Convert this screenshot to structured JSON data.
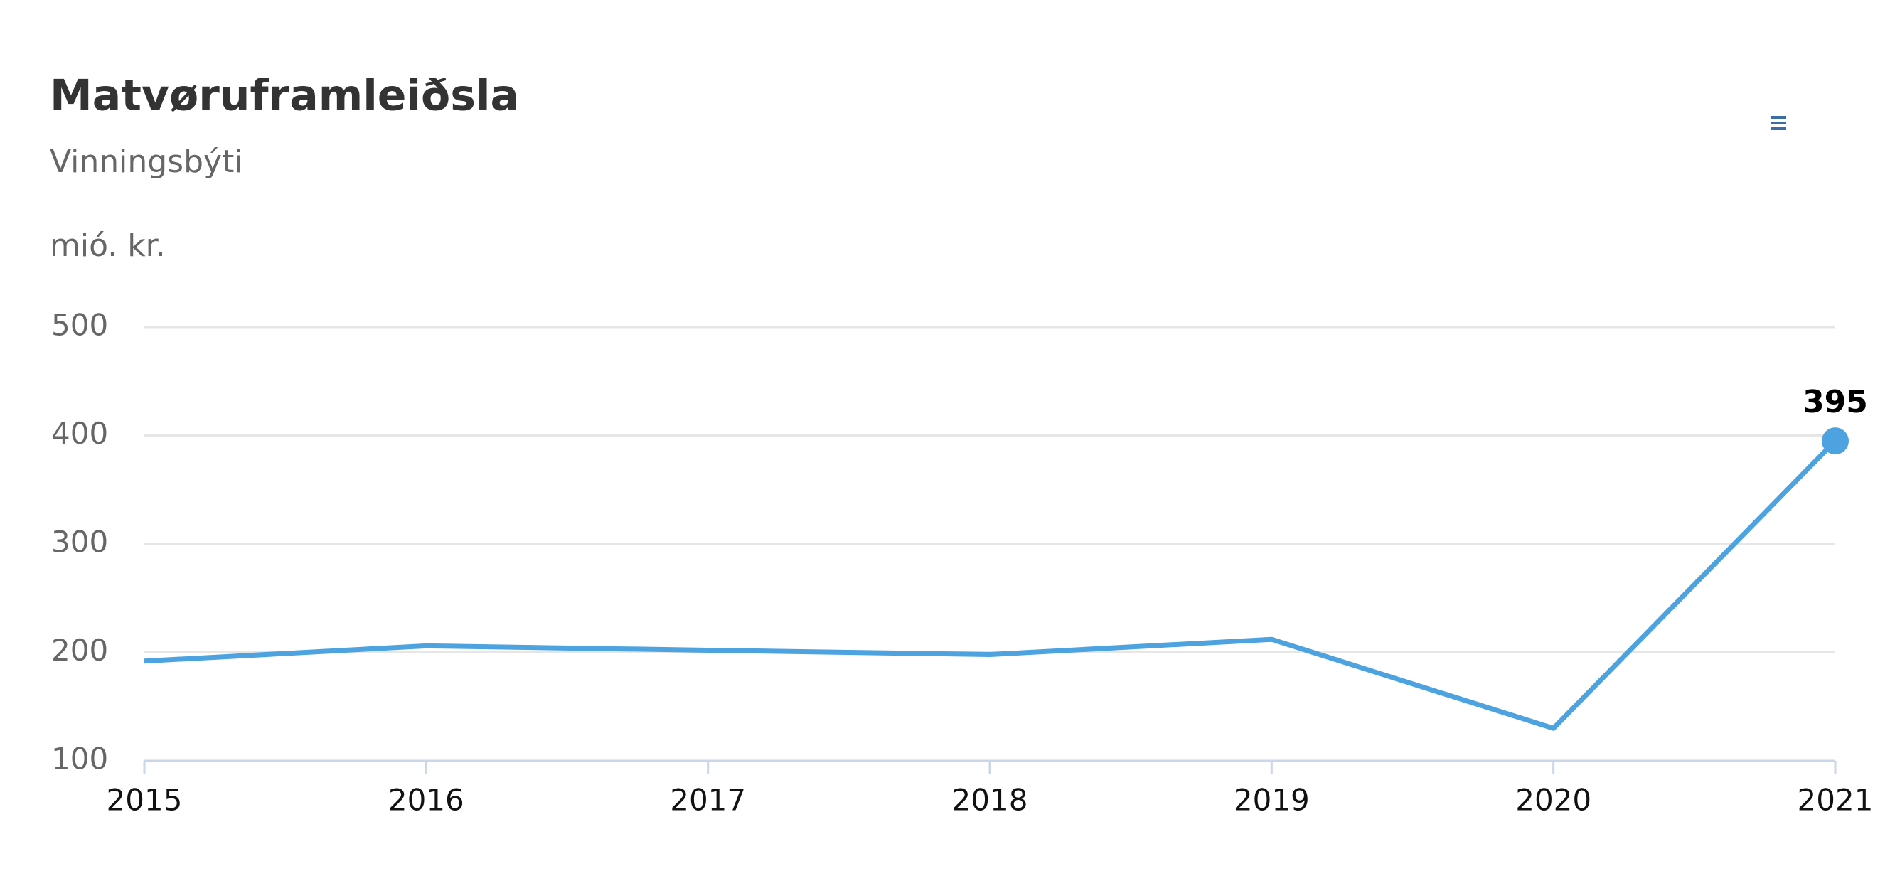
{
  "chart_data": {
    "type": "line",
    "title": "Matvøruframleiðsla",
    "subtitle": "Vinningsbýti",
    "y_label": "mió. kr.",
    "categories": [
      "2015",
      "2016",
      "2017",
      "2018",
      "2019",
      "2020",
      "2021"
    ],
    "series": [
      {
        "name": "Vinningsbýti",
        "color": "#4da3e0",
        "values": [
          192,
          206,
          202,
          198,
          212,
          130,
          395
        ]
      }
    ],
    "ylim": [
      100,
      500
    ],
    "yticks": [
      100,
      200,
      300,
      400,
      500
    ],
    "grid": true
  }
}
